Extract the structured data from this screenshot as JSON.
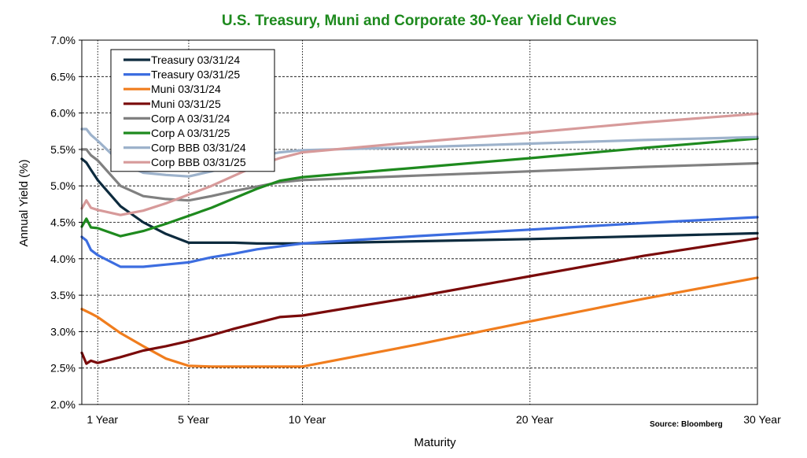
{
  "chart_data": {
    "type": "line",
    "title": "U.S. Treasury, Muni and Corporate 30-Year Yield Curves",
    "title_color": "#1E8A1E",
    "xlabel": "Maturity",
    "ylabel": "Annual Yield (%)",
    "source": "Source:  Bloomberg",
    "xlim": [
      0.3,
      30
    ],
    "ylim": [
      2.0,
      7.0
    ],
    "y_ticks": [
      {
        "value": 2.0,
        "label": "2.0%"
      },
      {
        "value": 2.5,
        "label": "2.5%"
      },
      {
        "value": 3.0,
        "label": "3.0%"
      },
      {
        "value": 3.5,
        "label": "3.5%"
      },
      {
        "value": 4.0,
        "label": "4.0%"
      },
      {
        "value": 4.5,
        "label": "4.5%"
      },
      {
        "value": 5.0,
        "label": "5.0%"
      },
      {
        "value": 5.5,
        "label": "5.5%"
      },
      {
        "value": 6.0,
        "label": "6.0%"
      },
      {
        "value": 6.5,
        "label": "6.5%"
      },
      {
        "value": 7.0,
        "label": "7.0%"
      }
    ],
    "x_ticks": [
      {
        "value": 1,
        "label": "1 Year"
      },
      {
        "value": 5,
        "label": "5 Year"
      },
      {
        "value": 10,
        "label": "10 Year"
      },
      {
        "value": 20,
        "label": "20 Year"
      },
      {
        "value": 30,
        "label": "30 Year"
      }
    ],
    "grid": {
      "horizontal": "dashed",
      "vertical": "dotted at tick maturities"
    },
    "legend_position": "top-left",
    "series": [
      {
        "name": "Treasury 03/31/24",
        "color": "#0D2B3E",
        "x": [
          0.3,
          0.5,
          0.7,
          1,
          2,
          3,
          4,
          5,
          6,
          7,
          8,
          9,
          10,
          15,
          20,
          25,
          30
        ],
        "y": [
          5.37,
          5.32,
          5.22,
          5.08,
          4.72,
          4.5,
          4.34,
          4.22,
          4.22,
          4.22,
          4.21,
          4.21,
          4.21,
          4.24,
          4.27,
          4.31,
          4.35
        ]
      },
      {
        "name": "Treasury 03/31/25",
        "color": "#3C6DE0",
        "x": [
          0.3,
          0.5,
          0.7,
          1,
          2,
          3,
          4,
          5,
          6,
          7,
          8,
          9,
          10,
          15,
          20,
          25,
          30
        ],
        "y": [
          4.3,
          4.25,
          4.12,
          4.05,
          3.89,
          3.89,
          3.92,
          3.95,
          4.02,
          4.07,
          4.13,
          4.17,
          4.21,
          4.31,
          4.4,
          4.49,
          4.57
        ]
      },
      {
        "name": "Muni 03/31/24",
        "color": "#F07D1E",
        "x": [
          0.3,
          0.5,
          0.7,
          1,
          2,
          3,
          4,
          5,
          6,
          7,
          8,
          9,
          10,
          15,
          20,
          25,
          30
        ],
        "y": [
          3.31,
          3.28,
          3.25,
          3.2,
          2.98,
          2.8,
          2.63,
          2.53,
          2.52,
          2.52,
          2.52,
          2.52,
          2.52,
          2.82,
          3.14,
          3.45,
          3.74
        ]
      },
      {
        "name": "Muni 03/31/25",
        "color": "#7A0A0A",
        "x": [
          0.3,
          0.5,
          0.7,
          1,
          2,
          3,
          4,
          5,
          6,
          7,
          8,
          9,
          10,
          15,
          20,
          25,
          30
        ],
        "y": [
          2.71,
          2.56,
          2.6,
          2.57,
          2.65,
          2.74,
          2.8,
          2.87,
          2.95,
          3.04,
          3.12,
          3.2,
          3.22,
          3.48,
          3.76,
          4.04,
          4.28
        ]
      },
      {
        "name": "Corp A 03/31/24",
        "color": "#808080",
        "x": [
          0.3,
          0.5,
          0.7,
          1,
          2,
          3,
          4,
          5,
          6,
          7,
          8,
          9,
          10,
          15,
          20,
          25,
          30
        ],
        "y": [
          5.5,
          5.5,
          5.42,
          5.35,
          5.0,
          4.86,
          4.82,
          4.8,
          4.86,
          4.93,
          4.99,
          5.05,
          5.08,
          5.14,
          5.2,
          5.26,
          5.31
        ]
      },
      {
        "name": "Corp A 03/31/25",
        "color": "#1E8A1E",
        "x": [
          0.3,
          0.5,
          0.7,
          1,
          2,
          3,
          4,
          5,
          6,
          7,
          8,
          9,
          10,
          15,
          20,
          25,
          30
        ],
        "y": [
          4.44,
          4.55,
          4.43,
          4.42,
          4.31,
          4.38,
          4.48,
          4.59,
          4.7,
          4.83,
          4.96,
          5.07,
          5.12,
          5.25,
          5.38,
          5.52,
          5.65
        ]
      },
      {
        "name": "Corp BBB 03/31/24",
        "color": "#9DB2CB",
        "x": [
          0.3,
          0.5,
          0.7,
          1,
          2,
          3,
          4,
          5,
          6,
          7,
          8,
          9,
          10,
          15,
          20,
          25,
          30
        ],
        "y": [
          5.78,
          5.78,
          5.7,
          5.62,
          5.32,
          5.18,
          5.15,
          5.13,
          5.2,
          5.3,
          5.4,
          5.46,
          5.49,
          5.53,
          5.58,
          5.63,
          5.67
        ]
      },
      {
        "name": "Corp BBB 03/31/25",
        "color": "#D79A9A",
        "x": [
          0.3,
          0.5,
          0.7,
          1,
          2,
          3,
          4,
          5,
          6,
          7,
          8,
          9,
          10,
          15,
          20,
          25,
          30
        ],
        "y": [
          4.69,
          4.8,
          4.7,
          4.67,
          4.6,
          4.66,
          4.76,
          4.88,
          5.0,
          5.14,
          5.28,
          5.38,
          5.46,
          5.6,
          5.73,
          5.87,
          5.99
        ]
      }
    ]
  }
}
